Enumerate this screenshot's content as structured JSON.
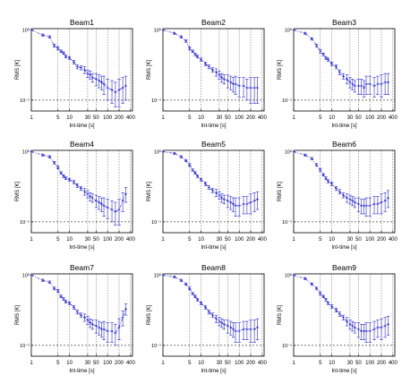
{
  "colors": {
    "series": "#2b2bd6",
    "frame": "#000000",
    "grid": "#555555",
    "reference": "#444444"
  },
  "axes": {
    "xlabel": "Int-time [s]",
    "ylabel": "RMS [K]",
    "x_ticks": [
      {
        "value": 1,
        "label": "1"
      },
      {
        "value": 5,
        "label": "5"
      },
      {
        "value": 10,
        "label": "10"
      },
      {
        "value": 30,
        "label": "30"
      },
      {
        "value": 50,
        "label": "50"
      },
      {
        "value": 100,
        "label": "100"
      },
      {
        "value": 200,
        "label": "200"
      },
      {
        "value": 400,
        "label": "400"
      }
    ],
    "y_ticks": [
      {
        "value": 1,
        "label": "10⁰"
      },
      {
        "value": 0.1,
        "label": "10⁻¹"
      }
    ]
  },
  "chart_data": [
    {
      "type": "line",
      "title": "Beam1",
      "x_scale": "log",
      "y_scale": "log",
      "xlim": [
        1,
        450
      ],
      "ylim": [
        0.07,
        1.05
      ],
      "grid": "vertical dotted",
      "reference_line": 0.1,
      "x": [
        1,
        2,
        3,
        4,
        5,
        6,
        7,
        8,
        10,
        13,
        16,
        20,
        25,
        30,
        35,
        40,
        50,
        60,
        70,
        80,
        100,
        130,
        160,
        200,
        250,
        300
      ],
      "y": [
        1.0,
        0.85,
        0.8,
        0.6,
        0.55,
        0.5,
        0.47,
        0.42,
        0.4,
        0.35,
        0.3,
        0.29,
        0.27,
        0.24,
        0.23,
        0.21,
        0.2,
        0.19,
        0.18,
        0.17,
        0.15,
        0.14,
        0.13,
        0.14,
        0.15,
        0.16
      ],
      "err": [
        0.0,
        0.03,
        0.03,
        0.03,
        0.03,
        0.02,
        0.02,
        0.02,
        0.02,
        0.02,
        0.02,
        0.02,
        0.03,
        0.03,
        0.03,
        0.03,
        0.04,
        0.04,
        0.04,
        0.05,
        0.05,
        0.05,
        0.05,
        0.06,
        0.06,
        0.06
      ]
    },
    {
      "type": "line",
      "title": "Beam2",
      "x_scale": "log",
      "y_scale": "log",
      "xlim": [
        1,
        450
      ],
      "ylim": [
        0.07,
        1.05
      ],
      "grid": "vertical dotted",
      "reference_line": 0.1,
      "x": [
        1,
        2,
        3,
        4,
        5,
        6,
        7,
        8,
        10,
        13,
        16,
        20,
        25,
        30,
        35,
        40,
        50,
        60,
        70,
        80,
        100,
        130,
        160,
        200,
        250,
        300
      ],
      "y": [
        1.0,
        0.9,
        0.8,
        0.7,
        0.55,
        0.5,
        0.45,
        0.42,
        0.38,
        0.33,
        0.3,
        0.27,
        0.25,
        0.23,
        0.21,
        0.2,
        0.19,
        0.18,
        0.17,
        0.17,
        0.16,
        0.16,
        0.15,
        0.15,
        0.15,
        0.15
      ],
      "err": [
        0.0,
        0.03,
        0.03,
        0.03,
        0.03,
        0.02,
        0.02,
        0.02,
        0.02,
        0.02,
        0.02,
        0.02,
        0.03,
        0.03,
        0.03,
        0.03,
        0.04,
        0.04,
        0.04,
        0.05,
        0.05,
        0.05,
        0.05,
        0.06,
        0.06,
        0.06
      ]
    },
    {
      "type": "line",
      "title": "Beam3",
      "x_scale": "log",
      "y_scale": "log",
      "xlim": [
        1,
        450
      ],
      "ylim": [
        0.07,
        1.05
      ],
      "grid": "vertical dotted",
      "reference_line": 0.1,
      "x": [
        1,
        2,
        3,
        4,
        5,
        6,
        7,
        8,
        10,
        13,
        16,
        20,
        25,
        30,
        35,
        40,
        50,
        60,
        70,
        80,
        100,
        130,
        160,
        200,
        250,
        300
      ],
      "y": [
        1.0,
        0.9,
        0.75,
        0.6,
        0.5,
        0.45,
        0.4,
        0.38,
        0.33,
        0.3,
        0.25,
        0.22,
        0.2,
        0.18,
        0.17,
        0.16,
        0.16,
        0.16,
        0.15,
        0.17,
        0.17,
        0.16,
        0.17,
        0.17,
        0.18,
        0.18
      ],
      "err": [
        0.0,
        0.03,
        0.03,
        0.03,
        0.03,
        0.02,
        0.02,
        0.02,
        0.02,
        0.02,
        0.02,
        0.02,
        0.03,
        0.03,
        0.03,
        0.03,
        0.04,
        0.04,
        0.04,
        0.05,
        0.05,
        0.05,
        0.05,
        0.06,
        0.06,
        0.06
      ]
    },
    {
      "type": "line",
      "title": "Beam4",
      "x_scale": "log",
      "y_scale": "log",
      "xlim": [
        1,
        450
      ],
      "ylim": [
        0.07,
        1.05
      ],
      "grid": "vertical dotted",
      "reference_line": 0.1,
      "x": [
        1,
        2,
        3,
        4,
        5,
        6,
        7,
        8,
        10,
        13,
        16,
        20,
        25,
        30,
        35,
        40,
        50,
        60,
        70,
        80,
        100,
        130,
        160,
        200,
        250,
        300
      ],
      "y": [
        1.0,
        0.9,
        0.85,
        0.7,
        0.6,
        0.5,
        0.45,
        0.42,
        0.4,
        0.37,
        0.33,
        0.3,
        0.27,
        0.25,
        0.23,
        0.22,
        0.2,
        0.19,
        0.18,
        0.17,
        0.16,
        0.15,
        0.14,
        0.15,
        0.2,
        0.25
      ],
      "err": [
        0.0,
        0.03,
        0.03,
        0.03,
        0.03,
        0.02,
        0.02,
        0.02,
        0.02,
        0.02,
        0.02,
        0.02,
        0.03,
        0.03,
        0.03,
        0.03,
        0.04,
        0.04,
        0.04,
        0.05,
        0.05,
        0.05,
        0.05,
        0.06,
        0.06,
        0.06
      ]
    },
    {
      "type": "line",
      "title": "Beam5",
      "x_scale": "log",
      "y_scale": "log",
      "xlim": [
        1,
        450
      ],
      "ylim": [
        0.07,
        1.05
      ],
      "grid": "vertical dotted",
      "reference_line": 0.1,
      "x": [
        1,
        2,
        3,
        4,
        5,
        6,
        7,
        8,
        10,
        13,
        16,
        20,
        25,
        30,
        35,
        40,
        50,
        60,
        70,
        80,
        100,
        130,
        160,
        200,
        250,
        300
      ],
      "y": [
        1.0,
        0.95,
        0.85,
        0.75,
        0.65,
        0.55,
        0.5,
        0.45,
        0.4,
        0.35,
        0.31,
        0.28,
        0.26,
        0.24,
        0.22,
        0.21,
        0.2,
        0.19,
        0.18,
        0.17,
        0.17,
        0.18,
        0.18,
        0.19,
        0.2,
        0.21
      ],
      "err": [
        0.0,
        0.03,
        0.03,
        0.03,
        0.03,
        0.02,
        0.02,
        0.02,
        0.02,
        0.02,
        0.02,
        0.02,
        0.03,
        0.03,
        0.03,
        0.03,
        0.04,
        0.04,
        0.04,
        0.05,
        0.05,
        0.05,
        0.05,
        0.06,
        0.06,
        0.06
      ]
    },
    {
      "type": "line",
      "title": "Beam6",
      "x_scale": "log",
      "y_scale": "log",
      "xlim": [
        1,
        450
      ],
      "ylim": [
        0.07,
        1.05
      ],
      "grid": "vertical dotted",
      "reference_line": 0.1,
      "x": [
        1,
        2,
        3,
        4,
        5,
        6,
        7,
        8,
        10,
        13,
        16,
        20,
        25,
        30,
        35,
        40,
        50,
        60,
        70,
        80,
        100,
        130,
        160,
        200,
        250,
        300
      ],
      "y": [
        1.0,
        0.9,
        0.8,
        0.65,
        0.55,
        0.47,
        0.42,
        0.38,
        0.35,
        0.3,
        0.27,
        0.24,
        0.22,
        0.21,
        0.2,
        0.19,
        0.18,
        0.17,
        0.17,
        0.17,
        0.17,
        0.18,
        0.18,
        0.19,
        0.2,
        0.22
      ],
      "err": [
        0.0,
        0.03,
        0.03,
        0.03,
        0.03,
        0.02,
        0.02,
        0.02,
        0.02,
        0.02,
        0.02,
        0.02,
        0.03,
        0.03,
        0.03,
        0.03,
        0.04,
        0.04,
        0.04,
        0.05,
        0.05,
        0.05,
        0.05,
        0.06,
        0.06,
        0.06
      ]
    },
    {
      "type": "line",
      "title": "Beam7",
      "x_scale": "log",
      "y_scale": "log",
      "xlim": [
        1,
        450
      ],
      "ylim": [
        0.07,
        1.05
      ],
      "grid": "vertical dotted",
      "reference_line": 0.1,
      "x": [
        1,
        2,
        3,
        4,
        5,
        6,
        7,
        8,
        10,
        13,
        16,
        20,
        25,
        30,
        35,
        40,
        50,
        60,
        70,
        80,
        100,
        130,
        160,
        200,
        250,
        300
      ],
      "y": [
        1.0,
        0.85,
        0.8,
        0.65,
        0.6,
        0.5,
        0.46,
        0.42,
        0.4,
        0.35,
        0.3,
        0.27,
        0.25,
        0.23,
        0.21,
        0.2,
        0.19,
        0.18,
        0.17,
        0.17,
        0.16,
        0.16,
        0.15,
        0.18,
        0.25,
        0.33
      ],
      "err": [
        0.0,
        0.03,
        0.03,
        0.03,
        0.03,
        0.02,
        0.02,
        0.02,
        0.02,
        0.02,
        0.02,
        0.02,
        0.03,
        0.03,
        0.03,
        0.03,
        0.04,
        0.04,
        0.04,
        0.05,
        0.05,
        0.05,
        0.05,
        0.06,
        0.06,
        0.06
      ]
    },
    {
      "type": "line",
      "title": "Beam8",
      "x_scale": "log",
      "y_scale": "log",
      "xlim": [
        1,
        450
      ],
      "ylim": [
        0.07,
        1.05
      ],
      "grid": "vertical dotted",
      "reference_line": 0.1,
      "x": [
        1,
        2,
        3,
        4,
        5,
        6,
        7,
        8,
        10,
        13,
        16,
        20,
        25,
        30,
        35,
        40,
        50,
        60,
        70,
        80,
        100,
        130,
        160,
        200,
        250,
        300
      ],
      "y": [
        1.0,
        0.95,
        0.85,
        0.75,
        0.65,
        0.55,
        0.5,
        0.45,
        0.4,
        0.35,
        0.3,
        0.27,
        0.24,
        0.22,
        0.21,
        0.2,
        0.19,
        0.18,
        0.17,
        0.16,
        0.16,
        0.17,
        0.17,
        0.17,
        0.17,
        0.18
      ],
      "err": [
        0.0,
        0.03,
        0.03,
        0.03,
        0.03,
        0.02,
        0.02,
        0.02,
        0.02,
        0.02,
        0.02,
        0.02,
        0.03,
        0.03,
        0.03,
        0.03,
        0.04,
        0.04,
        0.04,
        0.05,
        0.05,
        0.05,
        0.05,
        0.06,
        0.06,
        0.06
      ]
    },
    {
      "type": "line",
      "title": "Beam9",
      "x_scale": "log",
      "y_scale": "log",
      "xlim": [
        1,
        450
      ],
      "ylim": [
        0.07,
        1.05
      ],
      "grid": "vertical dotted",
      "reference_line": 0.1,
      "x": [
        1,
        2,
        3,
        4,
        5,
        6,
        7,
        8,
        10,
        13,
        16,
        20,
        25,
        30,
        35,
        40,
        50,
        60,
        70,
        80,
        100,
        130,
        160,
        200,
        250,
        300
      ],
      "y": [
        1.0,
        0.9,
        0.75,
        0.65,
        0.55,
        0.5,
        0.45,
        0.4,
        0.36,
        0.32,
        0.28,
        0.25,
        0.22,
        0.2,
        0.19,
        0.18,
        0.17,
        0.16,
        0.16,
        0.16,
        0.16,
        0.17,
        0.18,
        0.18,
        0.19,
        0.2
      ],
      "err": [
        0.0,
        0.03,
        0.03,
        0.03,
        0.03,
        0.02,
        0.02,
        0.02,
        0.02,
        0.02,
        0.02,
        0.02,
        0.03,
        0.03,
        0.03,
        0.03,
        0.04,
        0.04,
        0.04,
        0.05,
        0.05,
        0.05,
        0.05,
        0.06,
        0.06,
        0.06
      ]
    }
  ]
}
